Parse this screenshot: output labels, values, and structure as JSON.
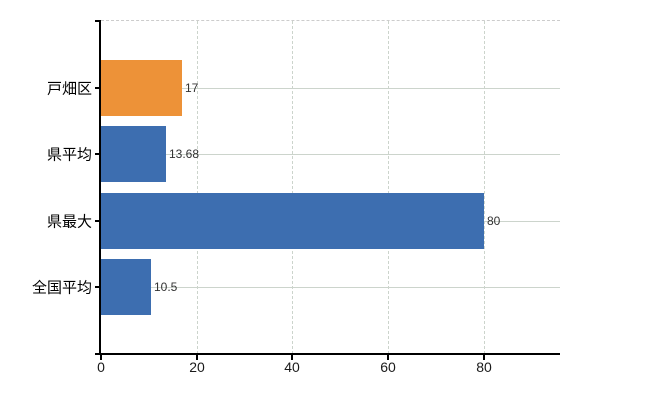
{
  "chart_data": {
    "type": "bar",
    "orientation": "horizontal",
    "title": "",
    "xlabel": "",
    "ylabel": "",
    "categories": [
      "戸畑区",
      "県平均",
      "県最大",
      "全国平均"
    ],
    "series": [
      {
        "name": "values",
        "values": [
          17,
          13.68,
          80,
          10.5
        ],
        "value_labels": [
          "17",
          "13.68",
          "80",
          "10.5"
        ],
        "bar_colors": [
          "#ed9238",
          "#3d6eb0",
          "#3d6eb0",
          "#3d6eb0"
        ]
      }
    ],
    "x_ticks": [
      0,
      20,
      40,
      60,
      80
    ],
    "x_tick_labels": [
      "0",
      "20",
      "40",
      "60",
      "80"
    ],
    "xlim": [
      0,
      96
    ],
    "grid": true,
    "legend": "none"
  },
  "colors": {
    "bar_orange": "#ed9238",
    "bar_blue": "#3d6eb0",
    "gridline": "#ccd4cc",
    "top_border_dashed": "#cccccc",
    "axis": "#000000",
    "value_text": "#333333",
    "tick_text": "#1a1a1a",
    "category_text": "#000000",
    "background": "#ffffff"
  }
}
